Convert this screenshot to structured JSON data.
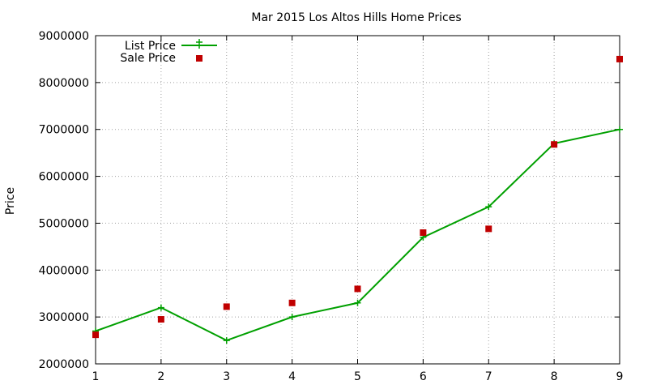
{
  "chart_data": {
    "type": "line",
    "title": "Mar 2015 Los Altos Hills Home Prices",
    "xlabel": "",
    "ylabel": "Price",
    "x": [
      1,
      2,
      3,
      4,
      5,
      6,
      7,
      8,
      9
    ],
    "xlim": [
      1,
      9
    ],
    "ylim": [
      2000000,
      9000000
    ],
    "x_ticks": [
      "1",
      "2",
      "3",
      "4",
      "5",
      "6",
      "7",
      "8",
      "9"
    ],
    "y_ticks": [
      "2000000",
      "3000000",
      "4000000",
      "5000000",
      "6000000",
      "7000000",
      "8000000",
      "9000000"
    ],
    "grid": true,
    "legend_position": "top-left",
    "series": [
      {
        "name": "List Price",
        "style": "line with cross markers",
        "color": "#00a000",
        "values": [
          2700000,
          3200000,
          2500000,
          3000000,
          3300000,
          4700000,
          5350000,
          6700000,
          7000000
        ]
      },
      {
        "name": "Sale Price",
        "style": "square markers",
        "color": "#c00000",
        "values": [
          2620000,
          2950000,
          3220000,
          3300000,
          3600000,
          4800000,
          4880000,
          6680000,
          8500000
        ]
      }
    ]
  }
}
